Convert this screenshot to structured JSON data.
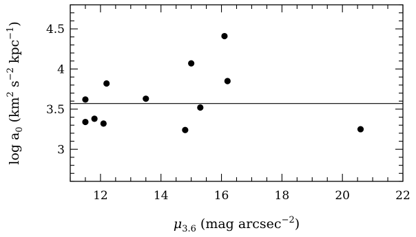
{
  "chart_data": {
    "type": "scatter",
    "title": "",
    "xlabel": "μ3.6 (mag arcsec⁻²)",
    "xlabel_parts": {
      "symbol": "μ",
      "sub": "3.6",
      "text": " (mag arcsec",
      "sup": "−2",
      "close": ")"
    },
    "ylabel": "log a0 (km² s⁻² kpc⁻¹)",
    "ylabel_parts": {
      "prefix": "log a",
      "sub": "0",
      "t1": " (km",
      "sup1": "2",
      "t2": " s",
      "sup2": "−2",
      "t3": " kpc",
      "sup3": "−1",
      "close": ")"
    },
    "xlim": [
      11,
      22
    ],
    "ylim": [
      2.6,
      4.8
    ],
    "xticks": [
      12,
      14,
      16,
      18,
      20,
      22
    ],
    "xtick_labels": [
      "12",
      "14",
      "16",
      "18",
      "20",
      "22"
    ],
    "yticks": [
      3,
      3.5,
      4,
      4.5
    ],
    "ytick_labels": [
      "3",
      "3.5",
      "4",
      "4.5"
    ],
    "x_minor_step": 0.5,
    "y_minor_step": 0.1,
    "grid": false,
    "legend": "none",
    "reference_line_y": 3.57,
    "points": [
      {
        "x": 11.5,
        "y": 3.62
      },
      {
        "x": 11.5,
        "y": 3.34
      },
      {
        "x": 11.8,
        "y": 3.38
      },
      {
        "x": 12.1,
        "y": 3.32
      },
      {
        "x": 12.2,
        "y": 3.82
      },
      {
        "x": 13.5,
        "y": 3.63
      },
      {
        "x": 14.8,
        "y": 3.24
      },
      {
        "x": 15.0,
        "y": 4.07
      },
      {
        "x": 15.3,
        "y": 3.52
      },
      {
        "x": 16.1,
        "y": 4.41
      },
      {
        "x": 16.2,
        "y": 3.85
      },
      {
        "x": 20.6,
        "y": 3.25
      }
    ],
    "colors": {
      "marker": "#000000",
      "axes": "#000000",
      "line": "#000000"
    }
  }
}
